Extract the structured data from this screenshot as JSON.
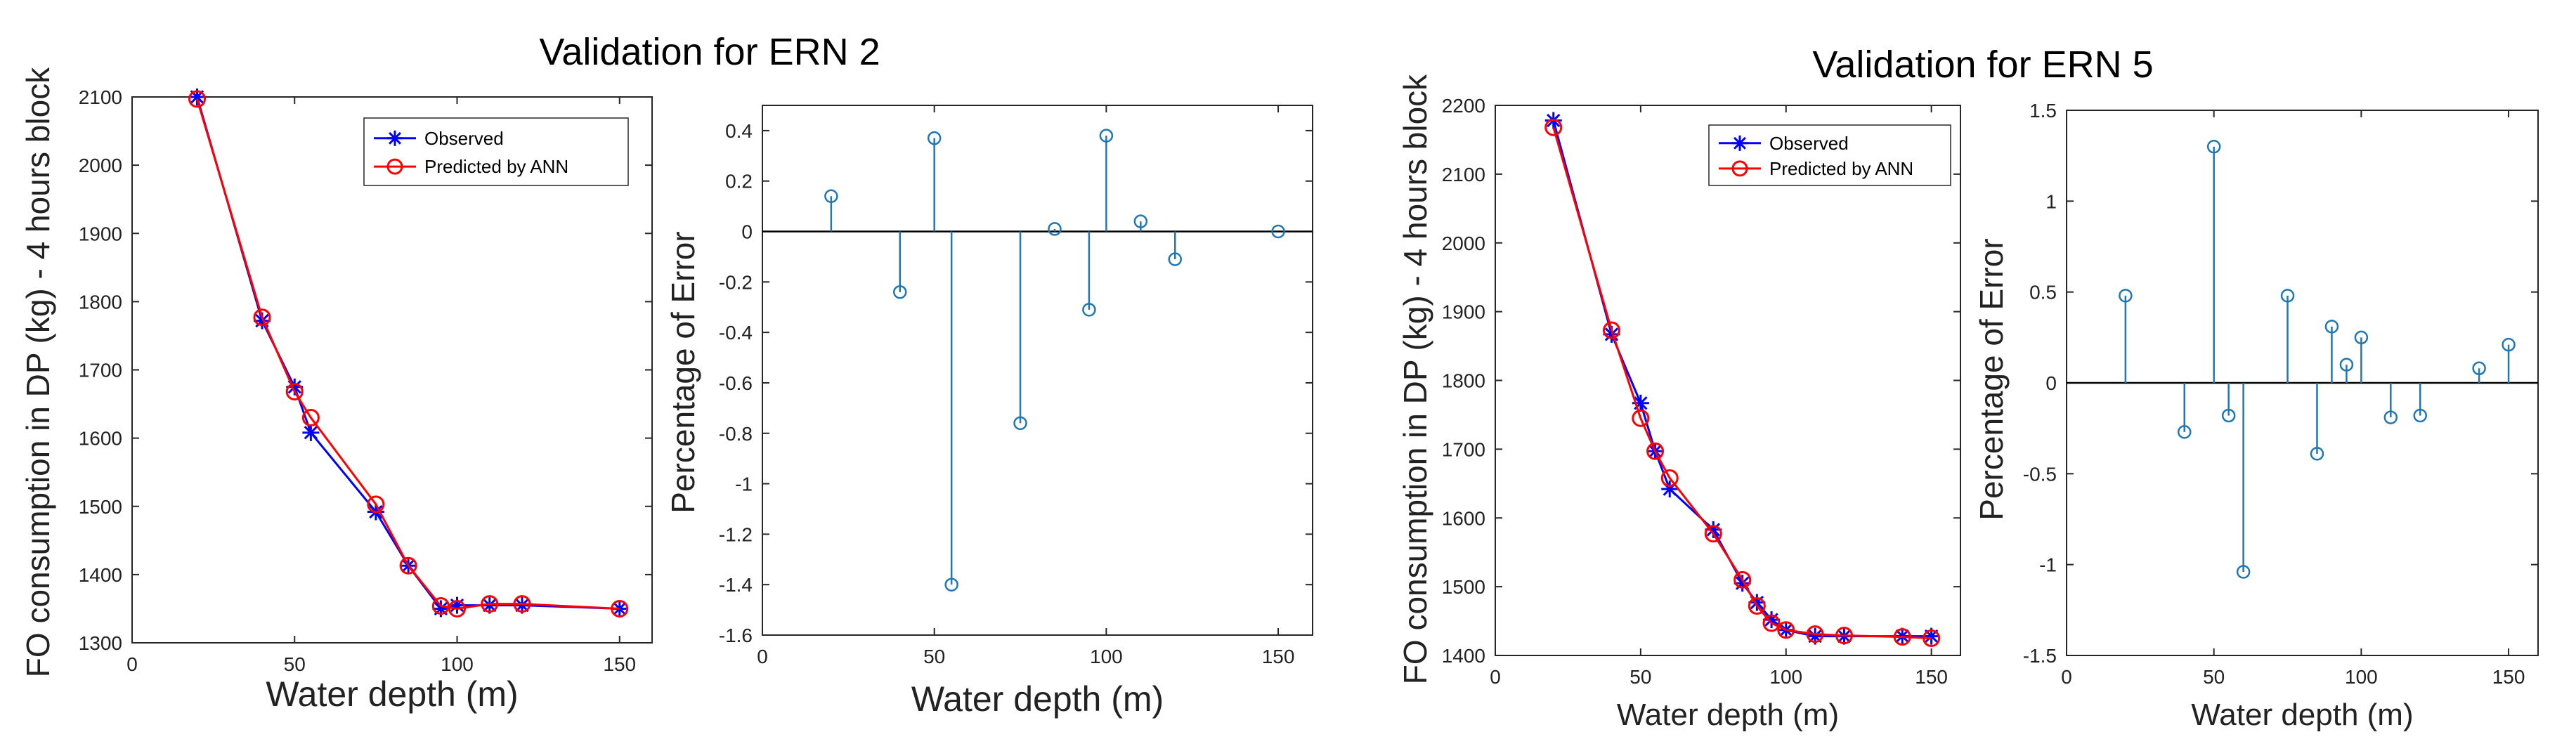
{
  "colors": {
    "observed": "#0000ff",
    "predicted": "#ff0000",
    "stem": "#1f77b4",
    "axis": "#262626"
  },
  "chart_data": [
    {
      "id": "ern2_consumption",
      "type": "line",
      "x": [
        20,
        40,
        50,
        55,
        75,
        85,
        95,
        100,
        110,
        120,
        150
      ],
      "series": [
        {
          "name": "Observed",
          "marker": "star",
          "values": [
            2100,
            1772,
            1675,
            1608,
            1492,
            1413,
            1350,
            1355,
            1355,
            1355,
            1350
          ]
        },
        {
          "name": "Predicted by ANN",
          "marker": "circle",
          "values": [
            2097,
            1777,
            1668,
            1630,
            1503,
            1413,
            1354,
            1350,
            1357,
            1357,
            1350
          ]
        }
      ],
      "xlim": [
        0,
        160
      ],
      "ylim": [
        1300,
        2100
      ],
      "xticks": [
        0,
        50,
        100,
        150
      ],
      "yticks": [
        1300,
        1400,
        1500,
        1600,
        1700,
        1800,
        1900,
        2000,
        2100
      ],
      "xtick_labels": [
        "0",
        "50",
        "100",
        "150"
      ],
      "ytick_labels": [
        "1300",
        "1400",
        "1500",
        "1600",
        "1700",
        "1800",
        "1900",
        "2000",
        "2100"
      ],
      "xlabel": "Water depth (m)",
      "ylabel": "FO consumption in DP (kg) - 4 hours block",
      "legend": [
        "Observed",
        "Predicted by ANN"
      ],
      "legend_position": "top-right"
    },
    {
      "id": "ern2_error",
      "type": "stem",
      "x": [
        20,
        40,
        50,
        55,
        75,
        85,
        95,
        100,
        110,
        120,
        150
      ],
      "values": [
        0.14,
        -0.24,
        0.37,
        -1.4,
        -0.76,
        0.01,
        -0.31,
        0.38,
        0.04,
        -0.11,
        0.0
      ],
      "xlim": [
        0,
        160
      ],
      "ylim": [
        -1.6,
        0.5
      ],
      "xticks": [
        0,
        50,
        100,
        150
      ],
      "yticks": [
        -1.6,
        -1.4,
        -1.2,
        -1,
        -0.8,
        -0.6,
        -0.4,
        -0.2,
        0,
        0.2,
        0.4
      ],
      "xtick_labels": [
        "0",
        "50",
        "100",
        "150"
      ],
      "ytick_labels": [
        "-1.6",
        "-1.4",
        "-1.2",
        "-1",
        "-0.8",
        "-0.6",
        "-0.4",
        "-0.2",
        "0",
        "0.2",
        "0.4"
      ],
      "xlabel": "Water depth (m)",
      "ylabel": "Percentage of Error"
    },
    {
      "id": "ern5_consumption",
      "type": "line",
      "x": [
        20,
        40,
        50,
        55,
        60,
        75,
        85,
        90,
        95,
        100,
        110,
        120,
        140,
        150
      ],
      "series": [
        {
          "name": "Observed",
          "marker": "star",
          "values": [
            2178,
            1867,
            1767,
            1697,
            1642,
            1583,
            1505,
            1477,
            1452,
            1437,
            1428,
            1428,
            1428,
            1428
          ]
        },
        {
          "name": "Predicted by ANN",
          "marker": "circle",
          "values": [
            2168,
            1873,
            1745,
            1697,
            1658,
            1577,
            1510,
            1472,
            1447,
            1437,
            1431,
            1429,
            1427,
            1425
          ]
        }
      ],
      "xlim": [
        0,
        160
      ],
      "ylim": [
        1400,
        2200
      ],
      "xticks": [
        0,
        50,
        100,
        150
      ],
      "yticks": [
        1400,
        1500,
        1600,
        1700,
        1800,
        1900,
        2000,
        2100,
        2200
      ],
      "xtick_labels": [
        "0",
        "50",
        "100",
        "150"
      ],
      "ytick_labels": [
        "1400",
        "1500",
        "1600",
        "1700",
        "1800",
        "1900",
        "2000",
        "2100",
        "2200"
      ],
      "xlabel": "Water depth (m)",
      "ylabel": "FO consumption in DP (kg) - 4 hours block",
      "legend": [
        "Observed",
        "Predicted by ANN"
      ],
      "legend_position": "top-right"
    },
    {
      "id": "ern5_error",
      "type": "stem",
      "x": [
        20,
        40,
        50,
        55,
        60,
        75,
        85,
        90,
        95,
        100,
        110,
        120,
        140,
        150
      ],
      "values": [
        0.48,
        -0.27,
        1.3,
        -0.18,
        -1.04,
        0.48,
        -0.39,
        0.31,
        0.1,
        0.25,
        -0.19,
        -0.18,
        0.08,
        0.21
      ],
      "xlim": [
        0,
        160
      ],
      "ylim": [
        -1.5,
        1.5
      ],
      "xticks": [
        0,
        50,
        100,
        150
      ],
      "yticks": [
        -1.5,
        -1,
        -0.5,
        0,
        0.5,
        1,
        1.5
      ],
      "xtick_labels": [
        "0",
        "50",
        "100",
        "150"
      ],
      "ytick_labels": [
        "-1.5",
        "-1",
        "-0.5",
        "0",
        "0.5",
        "1",
        "1.5"
      ],
      "xlabel": "Water depth (m)",
      "ylabel": "Percentage of Error"
    }
  ],
  "titles": {
    "ern2": "Validation for ERN 2",
    "ern5": "Validation for ERN 5"
  }
}
